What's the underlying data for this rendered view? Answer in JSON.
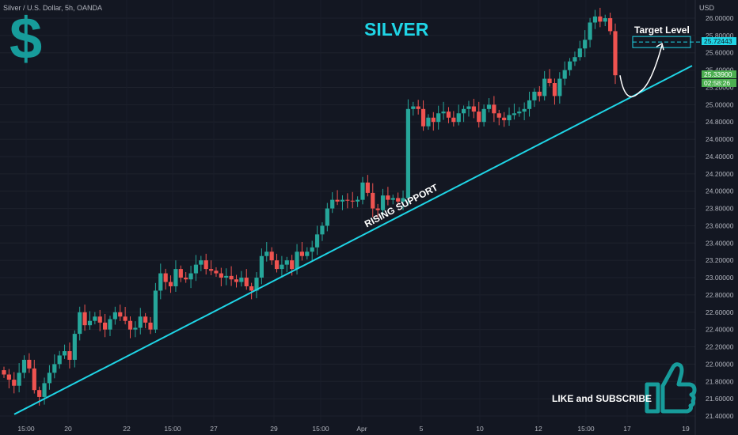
{
  "header": {
    "symbol_label": "Silver / U.S. Dollar, 5h, OANDA",
    "currency": "USD"
  },
  "annotations": {
    "title": "SILVER",
    "target_label": "Target Level",
    "support_label": "RISING SUPPORT",
    "cta": "LIKE and SUBSCRIBE",
    "dollar_glyph": "$"
  },
  "price_tags": {
    "target": "25.72443",
    "current": "25.33900",
    "countdown": "02:58:26"
  },
  "colors": {
    "up": "#26a69a",
    "down": "#ef5350",
    "support_line": "#1fd5e6",
    "accent": "#179c9b",
    "bg": "#131722"
  },
  "icons": [
    "dollar-icon",
    "thumbs-up-icon"
  ],
  "chart_data": {
    "type": "candlestick",
    "symbol": "Silver / U.S. Dollar, 5h, OANDA",
    "ylim": [
      21.3,
      26.15
    ],
    "y_ticks": [
      "26.00000",
      "25.80000",
      "25.60000",
      "25.40000",
      "25.20000",
      "25.00000",
      "24.80000",
      "24.60000",
      "24.40000",
      "24.20000",
      "24.00000",
      "23.80000",
      "23.60000",
      "23.40000",
      "23.20000",
      "23.00000",
      "22.80000",
      "22.60000",
      "22.40000",
      "22.20000",
      "22.00000",
      "21.80000",
      "21.60000",
      "21.40000"
    ],
    "x_ticks": [
      "15:00",
      "20",
      "22",
      "15:00",
      "27",
      "29",
      "15:00",
      "Apr",
      "5",
      "10",
      "12",
      "15:00",
      "17",
      "19"
    ],
    "closes": [
      21.88,
      21.82,
      21.75,
      21.9,
      22.05,
      21.95,
      21.7,
      21.62,
      21.78,
      21.9,
      22.0,
      22.1,
      22.15,
      22.05,
      22.35,
      22.6,
      22.45,
      22.5,
      22.55,
      22.48,
      22.4,
      22.52,
      22.6,
      22.55,
      22.5,
      22.4,
      22.42,
      22.55,
      22.48,
      22.4,
      22.85,
      23.05,
      22.95,
      22.9,
      23.1,
      23.0,
      22.98,
      23.05,
      23.15,
      23.2,
      23.1,
      23.08,
      23.05,
      23.0,
      23.02,
      22.98,
      22.95,
      23.0,
      22.9,
      22.85,
      23.0,
      23.25,
      23.3,
      23.2,
      23.1,
      23.15,
      23.2,
      23.1,
      23.3,
      23.25,
      23.3,
      23.35,
      23.5,
      23.6,
      23.8,
      23.9,
      23.88,
      23.9,
      23.89,
      23.88,
      23.9,
      24.1,
      23.98,
      23.8,
      23.78,
      23.95,
      23.9,
      23.92,
      23.88,
      23.92,
      24.95,
      24.98,
      24.95,
      24.75,
      24.85,
      24.8,
      24.9,
      24.92,
      24.85,
      24.8,
      24.9,
      24.95,
      24.98,
      24.92,
      24.8,
      24.95,
      25.0,
      24.9,
      24.85,
      24.82,
      24.88,
      24.9,
      24.92,
      24.95,
      25.05,
      25.15,
      25.1,
      25.3,
      25.25,
      25.1,
      25.3,
      25.4,
      25.5,
      25.55,
      25.65,
      25.75,
      25.95,
      26.02,
      25.96,
      26.0,
      25.85,
      25.34
    ],
    "current_price": 25.339,
    "target_level": 25.72443,
    "support_line": {
      "start": [
        "15:00",
        21.42
      ],
      "end": [
        "19",
        25.45
      ]
    }
  }
}
